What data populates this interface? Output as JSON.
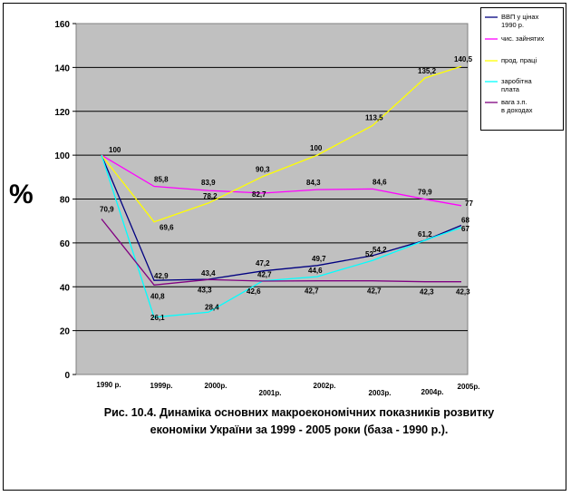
{
  "chart_data": {
    "type": "line",
    "categories": [
      "1990 р.",
      "1999р.",
      "2000р.",
      "2001р.",
      "2002р.",
      "2003р.",
      "2004р.",
      "2005р."
    ],
    "ylim": [
      0,
      160
    ],
    "yticks": [
      "0",
      "20",
      "40",
      "60",
      "80",
      "100",
      "120",
      "140",
      "160"
    ],
    "ylabel": "%",
    "grid": true,
    "legend_position": "top-right",
    "series": [
      {
        "name": "ВВП у цінах 1990 р.",
        "color": "#000080",
        "values": [
          100,
          42.9,
          43.4,
          47.2,
          49.7,
          54.2,
          61.2,
          68
        ],
        "labels": [
          "",
          "42,9",
          "43,4",
          "47,2",
          "49,7",
          "54,2",
          "61,2",
          "68"
        ]
      },
      {
        "name": "чис. зайнятих",
        "color": "#ff00ff",
        "values": [
          100,
          85.8,
          83.9,
          82.7,
          84.3,
          84.6,
          79.9,
          77
        ],
        "labels": [
          "100",
          "85,8",
          "83,9",
          "82,7",
          "84,3",
          "84,6",
          "79,9",
          "77"
        ]
      },
      {
        "name": "прод. праці",
        "color": "#ffff00",
        "values": [
          100,
          69.6,
          78.2,
          90.3,
          100,
          113.5,
          135.2,
          140.5
        ],
        "labels": [
          "",
          "69,6",
          "78,2",
          "90,3",
          "100",
          "113,5",
          "135,2",
          "140,5"
        ]
      },
      {
        "name": "заробітна плата",
        "color": "#00ffff",
        "values": [
          100,
          26.1,
          28.4,
          42.7,
          44.6,
          52,
          61.2,
          67
        ],
        "labels": [
          "",
          "26,1",
          "28,4",
          "42,7",
          "44,6",
          "52",
          "",
          "67"
        ]
      },
      {
        "name": "вага з.п. в доходах",
        "color": "#800080",
        "values": [
          70.9,
          40.8,
          43.3,
          42.6,
          42.7,
          42.7,
          42.3,
          42.3
        ],
        "labels": [
          "70,9",
          "40,8",
          "43,3",
          "42,6",
          "42,7",
          "42,7",
          "42,3",
          "42,3"
        ]
      }
    ]
  },
  "caption": {
    "line1": "Рис. 10.4. Динаміка основних макроекономічних показників розвитку",
    "line2": "економіки України за 1999 - 2005 роки (база - 1990 р.)."
  }
}
